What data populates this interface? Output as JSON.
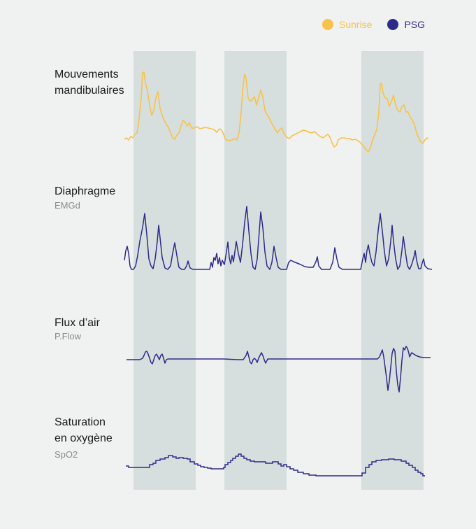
{
  "colors": {
    "background": "#f0f1f1",
    "band": "#d6dfdd",
    "sunrise": "#f8c24a",
    "psg": "#2d2b8a"
  },
  "legend": [
    {
      "label": "Sunrise",
      "color": "#f8c24a"
    },
    {
      "label": "PSG",
      "color": "#2d2b8a"
    }
  ],
  "signals": [
    {
      "title_lines": [
        "Mouvements",
        "mandibulaires"
      ],
      "subtitle": "",
      "source": "Sunrise"
    },
    {
      "title_lines": [
        "Diaphragme"
      ],
      "subtitle": "EMGd",
      "source": "PSG"
    },
    {
      "title_lines": [
        "Flux d’air"
      ],
      "subtitle": "P.Flow",
      "source": "PSG"
    },
    {
      "title_lines": [
        "Saturation",
        "en oxygène"
      ],
      "subtitle": "SpO2",
      "source": "PSG"
    }
  ]
}
